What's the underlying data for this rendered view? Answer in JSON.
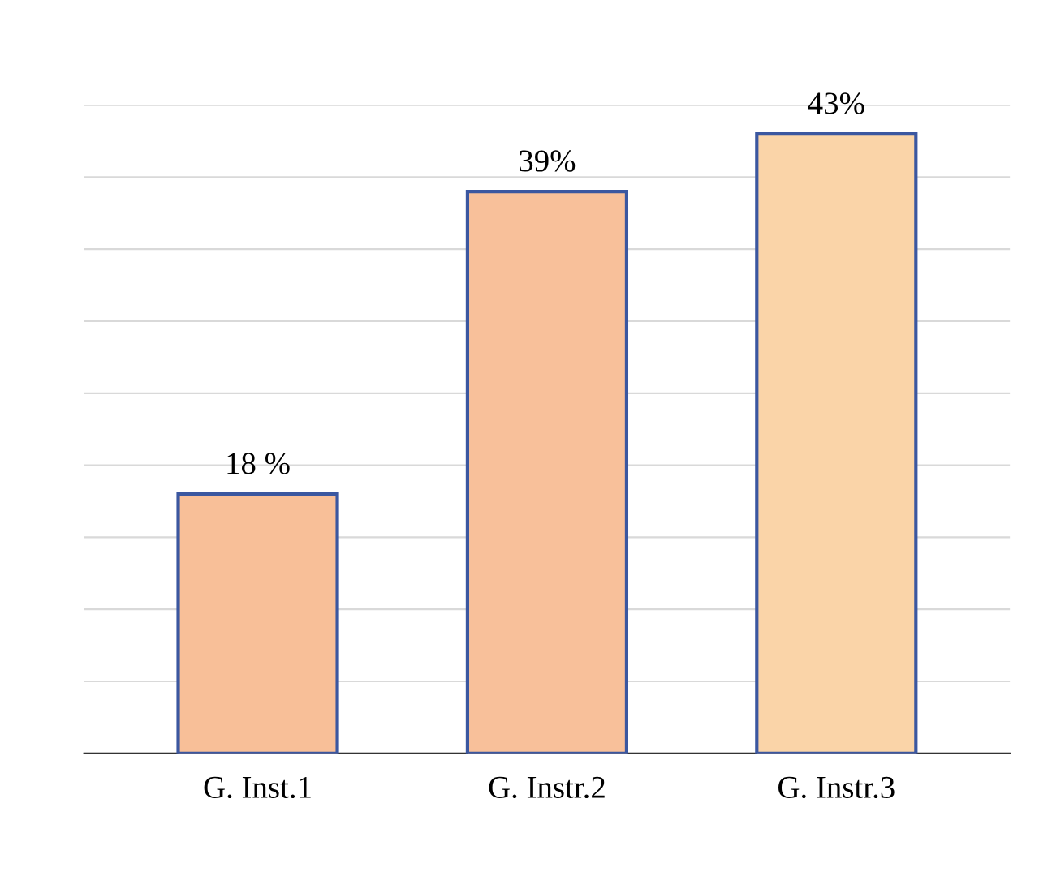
{
  "chart_data": {
    "type": "bar",
    "categories": [
      "G. Inst.1",
      "G. Instr.2",
      "G. Instr.3"
    ],
    "values": [
      18,
      39,
      43
    ],
    "colors": [
      "#f8bf98",
      "#f8c09a",
      "#fad4a8"
    ],
    "value_labels": [
      "18 %",
      "39%",
      "43%"
    ],
    "ylim": [
      0,
      45
    ],
    "yticks": [
      {
        "value": 0,
        "label": null
      },
      {
        "value": 5,
        "label": null
      },
      {
        "value": 10,
        "label": null
      },
      {
        "value": 15,
        "label": null
      },
      {
        "value": 20,
        "label": null
      },
      {
        "value": 25,
        "label": null
      },
      {
        "value": 30,
        "label": null
      },
      {
        "value": 35,
        "label": null
      },
      {
        "value": 40,
        "label": null
      },
      {
        "value": 45,
        "label": null
      }
    ],
    "grid": "y",
    "legend": false
  }
}
